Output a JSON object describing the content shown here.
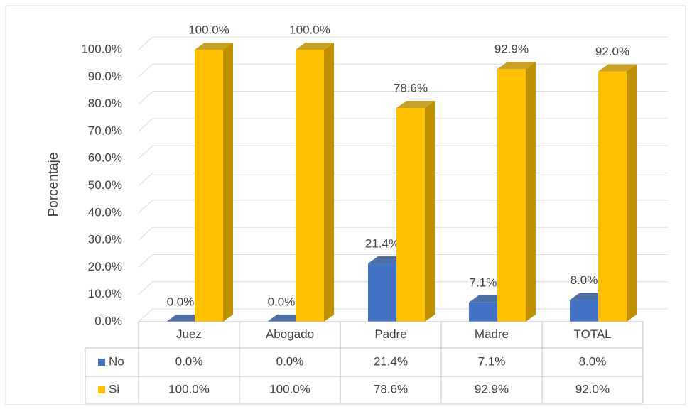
{
  "chart_data": {
    "type": "bar3d",
    "y_label": "Porcentaje",
    "categories": [
      "Juez",
      "Abogado",
      "Padre",
      "Madre",
      "TOTAL"
    ],
    "series": [
      {
        "name": "No",
        "color": "#4472c4",
        "side_color": "#2f5597",
        "values": [
          0,
          0,
          21.4,
          7.1,
          8.0
        ],
        "value_labels": [
          "0.0%",
          "0.0%",
          "21.4%",
          "7.1%",
          "8.0%"
        ]
      },
      {
        "name": "Si",
        "color": "#ffc000",
        "side_color": "#bf9000",
        "values": [
          100,
          100,
          78.6,
          92.9,
          92.0
        ],
        "value_labels": [
          "100.0%",
          "100.0%",
          "78.6%",
          "92.9%",
          "92.0%"
        ]
      }
    ],
    "ylim": [
      0,
      100
    ],
    "yticks": [
      {
        "value": 0,
        "label": "0.0%"
      },
      {
        "value": 10,
        "label": "10.0%"
      },
      {
        "value": 20,
        "label": "20.0%"
      },
      {
        "value": 30,
        "label": "30.0%"
      },
      {
        "value": 40,
        "label": "40.0%"
      },
      {
        "value": 50,
        "label": "50.0%"
      },
      {
        "value": 60,
        "label": "60.0%"
      },
      {
        "value": 70,
        "label": "70.0%"
      },
      {
        "value": 80,
        "label": "80.0%"
      },
      {
        "value": 90,
        "label": "90.0%"
      },
      {
        "value": 100,
        "label": "100.0%"
      }
    ],
    "grid": true,
    "data_table": true
  }
}
